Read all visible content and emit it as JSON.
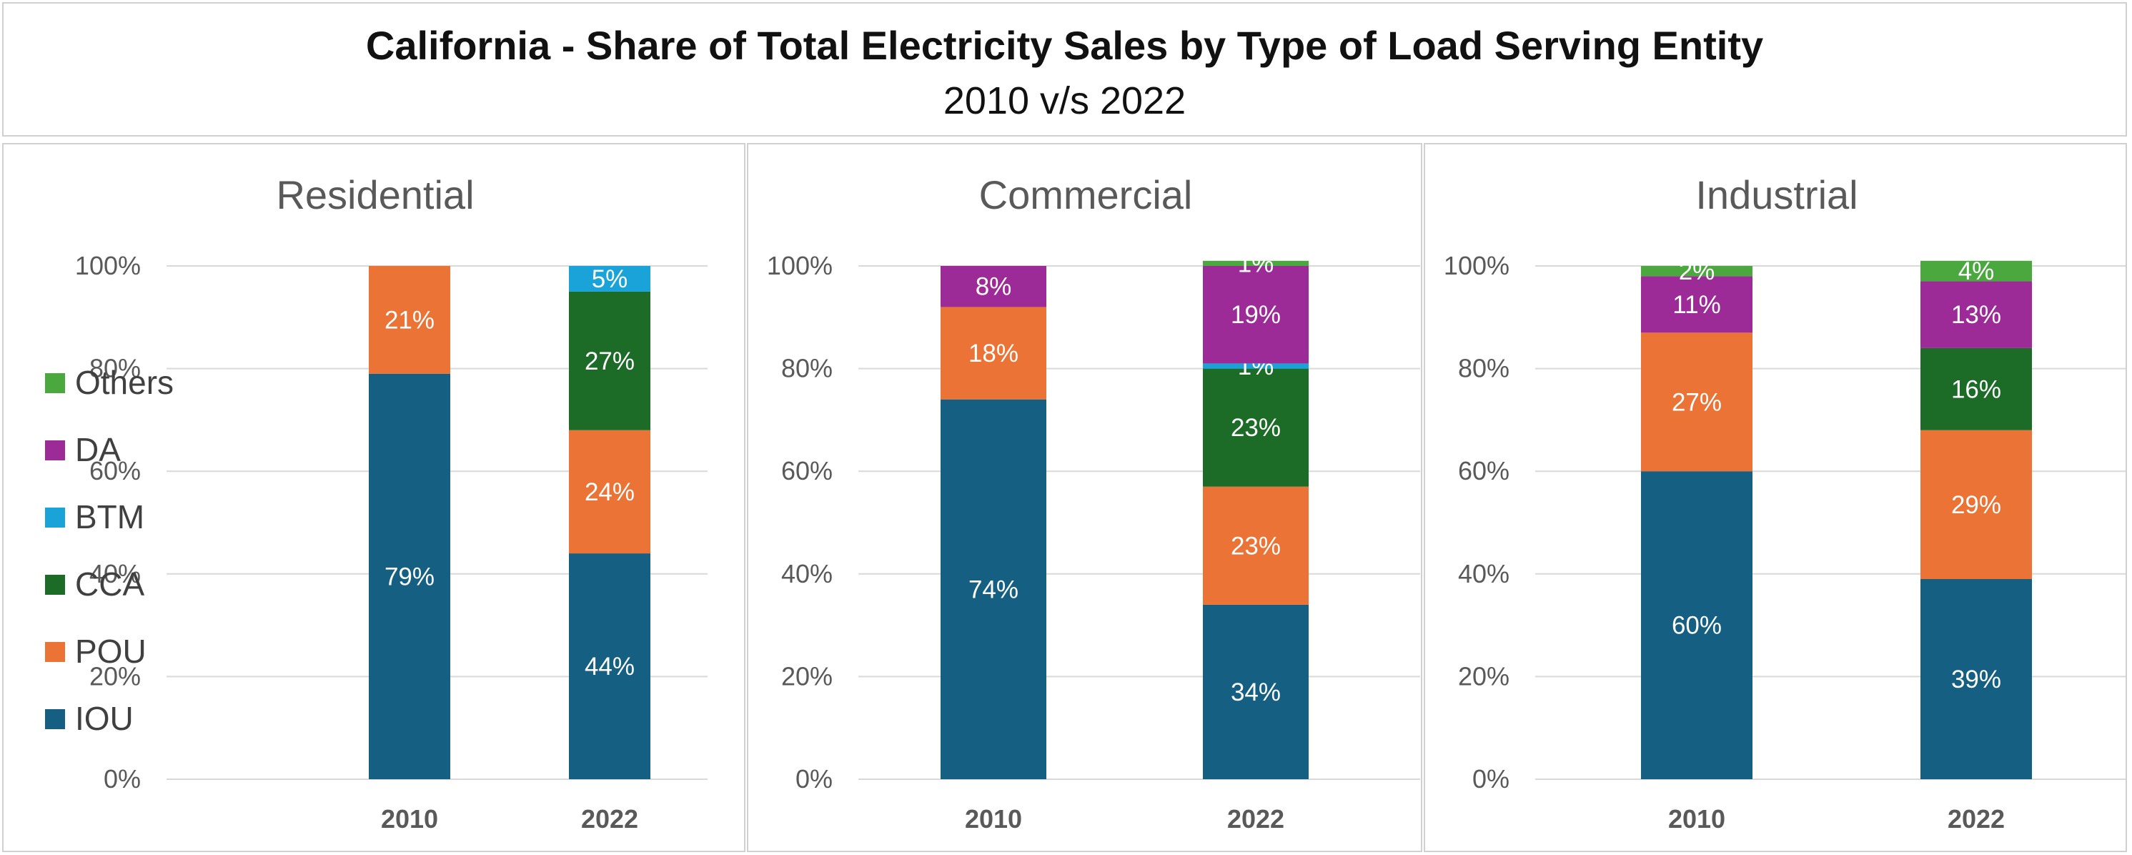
{
  "header": {
    "title": "California - Share of Total Electricity Sales by Type of Load Serving Entity",
    "subtitle": "2010 v/s 2022"
  },
  "legend": [
    {
      "name": "Others",
      "color": "#4aa83e"
    },
    {
      "name": "DA",
      "color": "#9c2a97"
    },
    {
      "name": "BTM",
      "color": "#1aa3d8"
    },
    {
      "name": "CCA",
      "color": "#1c6b27"
    },
    {
      "name": "POU",
      "color": "#ea7335"
    },
    {
      "name": "IOU",
      "color": "#155f82"
    }
  ],
  "chart_data": [
    {
      "type": "bar",
      "stacked": true,
      "title": "Residential",
      "categories": [
        "2010",
        "2022"
      ],
      "ylim": [
        0,
        100
      ],
      "yticks": [
        "0%",
        "20%",
        "40%",
        "60%",
        "80%",
        "100%"
      ],
      "grid": true,
      "legend": "left",
      "series": [
        {
          "name": "IOU",
          "values": [
            79,
            44
          ],
          "labels": [
            "79%",
            "44%"
          ]
        },
        {
          "name": "POU",
          "values": [
            21,
            24
          ],
          "labels": [
            "21%",
            "24%"
          ]
        },
        {
          "name": "CCA",
          "values": [
            0,
            27
          ],
          "labels": [
            "",
            "27%"
          ]
        },
        {
          "name": "BTM",
          "values": [
            0,
            5
          ],
          "labels": [
            "",
            "5%"
          ]
        },
        {
          "name": "DA",
          "values": [
            0,
            0
          ],
          "labels": [
            "",
            ""
          ]
        },
        {
          "name": "Others",
          "values": [
            0,
            0
          ],
          "labels": [
            "",
            ""
          ]
        }
      ]
    },
    {
      "type": "bar",
      "stacked": true,
      "title": "Commercial",
      "categories": [
        "2010",
        "2022"
      ],
      "ylim": [
        0,
        100
      ],
      "yticks": [
        "0%",
        "20%",
        "40%",
        "60%",
        "80%",
        "100%"
      ],
      "grid": true,
      "series": [
        {
          "name": "IOU",
          "values": [
            74,
            34
          ],
          "labels": [
            "74%",
            "34%"
          ]
        },
        {
          "name": "POU",
          "values": [
            18,
            23
          ],
          "labels": [
            "18%",
            "23%"
          ]
        },
        {
          "name": "CCA",
          "values": [
            0,
            23
          ],
          "labels": [
            "",
            "23%"
          ]
        },
        {
          "name": "BTM",
          "values": [
            0,
            1
          ],
          "labels": [
            "",
            "1%"
          ]
        },
        {
          "name": "DA",
          "values": [
            8,
            19
          ],
          "labels": [
            "8%",
            "19%"
          ]
        },
        {
          "name": "Others",
          "values": [
            0,
            1
          ],
          "labels": [
            "",
            "1%"
          ]
        }
      ]
    },
    {
      "type": "bar",
      "stacked": true,
      "title": "Industrial",
      "categories": [
        "2010",
        "2022"
      ],
      "ylim": [
        0,
        100
      ],
      "yticks": [
        "0%",
        "20%",
        "40%",
        "60%",
        "80%",
        "100%"
      ],
      "grid": true,
      "series": [
        {
          "name": "IOU",
          "values": [
            60,
            39
          ],
          "labels": [
            "60%",
            "39%"
          ]
        },
        {
          "name": "POU",
          "values": [
            27,
            29
          ],
          "labels": [
            "27%",
            "29%"
          ]
        },
        {
          "name": "CCA",
          "values": [
            0,
            16
          ],
          "labels": [
            "",
            "16%"
          ]
        },
        {
          "name": "BTM",
          "values": [
            0,
            0
          ],
          "labels": [
            "",
            ""
          ]
        },
        {
          "name": "DA",
          "values": [
            11,
            13
          ],
          "labels": [
            "11%",
            "13%"
          ]
        },
        {
          "name": "Others",
          "values": [
            2,
            4
          ],
          "labels": [
            "2%",
            "4%"
          ]
        }
      ]
    }
  ]
}
